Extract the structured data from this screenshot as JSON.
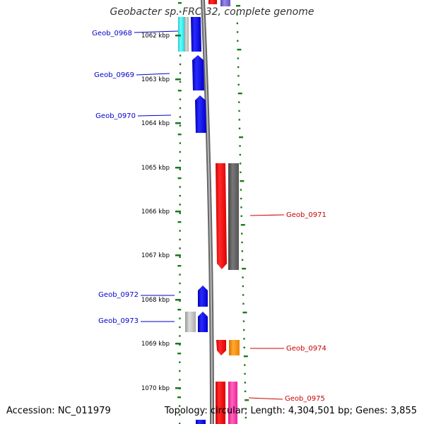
{
  "title": "Geobacter sp. FRC-32, complete genome",
  "footer": {
    "accession": "Accession: NC_011979",
    "topology": "Topology: circular; Length: 4,304,501 bp; Genes: 3,855"
  },
  "colors": {
    "tick": "#1a7a1a",
    "backbone": "#8c8c8c",
    "forward_gene_label": "#0000cc",
    "reverse_gene_label": "#cc0000",
    "gene_blue": "#0000ff",
    "gene_red": "#ff0000",
    "gene_gray": "#666666",
    "gene_light_gray": "#bbbbbb",
    "gene_cyan": "#33e6e6",
    "gene_orange": "#ff8800",
    "gene_pink": "#ff2a9c",
    "gene_purple": "#7766cc"
  },
  "scale": {
    "unit": "kbp",
    "labels": [
      "1062 kbp",
      "1063 kbp",
      "1064 kbp",
      "1065 kbp",
      "1066 kbp",
      "1067 kbp",
      "1068 kbp",
      "1069 kbp",
      "1070 kbp"
    ]
  },
  "gene_labels": [
    {
      "name": "Geob_0968",
      "strand": "forward"
    },
    {
      "name": "Geob_0969",
      "strand": "forward"
    },
    {
      "name": "Geob_0970",
      "strand": "forward"
    },
    {
      "name": "Geob_0971",
      "strand": "reverse"
    },
    {
      "name": "Geob_0972",
      "strand": "forward"
    },
    {
      "name": "Geob_0973",
      "strand": "forward"
    },
    {
      "name": "Geob_0974",
      "strand": "reverse"
    },
    {
      "name": "Geob_0975",
      "strand": "reverse"
    }
  ]
}
